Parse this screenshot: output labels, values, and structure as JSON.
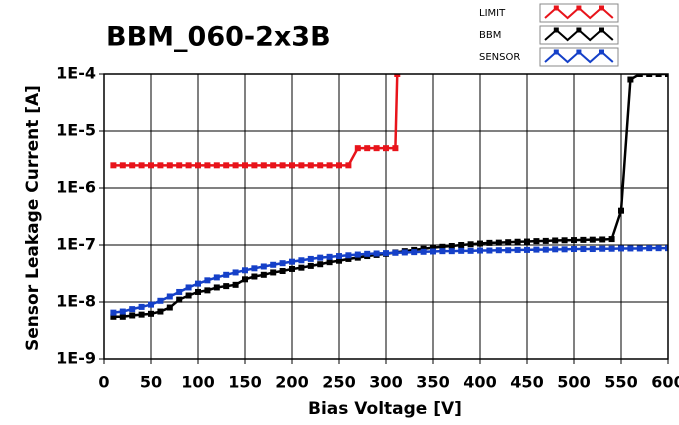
{
  "chart_data": {
    "type": "line",
    "title": "BBM_060-2x3B",
    "x_label": "Bias Voltage [V]",
    "y_label": "Sensor Leakage Current [A]",
    "log_y": true,
    "grid": true,
    "legend": "top-right",
    "xlim": [
      0,
      600
    ],
    "xticks": [
      0,
      50,
      100,
      150,
      200,
      250,
      300,
      350,
      400,
      450,
      500,
      550,
      600
    ],
    "ylim": [
      1e-09,
      0.0001
    ],
    "yticks": [
      {
        "value": 1e-09,
        "label": "1E-9"
      },
      {
        "value": 1e-08,
        "label": "1E-8"
      },
      {
        "value": 1e-07,
        "label": "1E-7"
      },
      {
        "value": 1e-06,
        "label": "1E-6"
      },
      {
        "value": 1e-05,
        "label": "1E-5"
      },
      {
        "value": 0.0001,
        "label": "1E-4"
      }
    ],
    "series": [
      {
        "name": "LIMIT",
        "color": "#e8141b",
        "x": [
          10,
          20,
          30,
          40,
          50,
          60,
          70,
          80,
          90,
          100,
          110,
          120,
          130,
          140,
          150,
          160,
          170,
          180,
          190,
          200,
          210,
          220,
          230,
          240,
          250,
          260,
          270,
          280,
          290,
          300,
          310,
          312
        ],
        "values": [
          2.5e-06,
          2.5e-06,
          2.5e-06,
          2.5e-06,
          2.5e-06,
          2.5e-06,
          2.5e-06,
          2.5e-06,
          2.5e-06,
          2.5e-06,
          2.5e-06,
          2.5e-06,
          2.5e-06,
          2.5e-06,
          2.5e-06,
          2.5e-06,
          2.5e-06,
          2.5e-06,
          2.5e-06,
          2.5e-06,
          2.5e-06,
          2.5e-06,
          2.5e-06,
          2.5e-06,
          2.5e-06,
          2.5e-06,
          5e-06,
          5e-06,
          5e-06,
          5e-06,
          5e-06,
          0.0001
        ]
      },
      {
        "name": "BBM",
        "color": "#000000",
        "x": [
          10,
          20,
          30,
          40,
          50,
          60,
          70,
          80,
          90,
          100,
          110,
          120,
          130,
          140,
          150,
          160,
          170,
          180,
          190,
          200,
          210,
          220,
          230,
          240,
          250,
          260,
          270,
          280,
          290,
          300,
          310,
          320,
          330,
          340,
          350,
          360,
          370,
          380,
          390,
          400,
          410,
          420,
          430,
          440,
          450,
          460,
          470,
          480,
          490,
          500,
          510,
          520,
          530,
          540,
          550,
          560,
          570,
          580,
          590,
          600
        ],
        "values": [
          5.5e-09,
          5.5e-09,
          5.8e-09,
          6e-09,
          6.2e-09,
          6.8e-09,
          8e-09,
          1.1e-08,
          1.3e-08,
          1.5e-08,
          1.6e-08,
          1.8e-08,
          1.9e-08,
          2e-08,
          2.5e-08,
          2.8e-08,
          3e-08,
          3.3e-08,
          3.5e-08,
          3.8e-08,
          4e-08,
          4.3e-08,
          4.6e-08,
          5e-08,
          5.3e-08,
          5.7e-08,
          6e-08,
          6.4e-08,
          6.7e-08,
          7e-08,
          7.4e-08,
          7.8e-08,
          8.2e-08,
          8.6e-08,
          9e-08,
          9.3e-08,
          9.6e-08,
          1e-07,
          1.03e-07,
          1.06e-07,
          1.09e-07,
          1.1e-07,
          1.12e-07,
          1.14e-07,
          1.15e-07,
          1.17e-07,
          1.18e-07,
          1.2e-07,
          1.21e-07,
          1.22e-07,
          1.23e-07,
          1.24e-07,
          1.25e-07,
          1.27e-07,
          4e-07,
          8e-05,
          0.0001,
          0.0001,
          0.0001,
          0.0001
        ]
      },
      {
        "name": "SENSOR",
        "color": "#1540c8",
        "x": [
          10,
          20,
          30,
          40,
          50,
          60,
          70,
          80,
          90,
          100,
          110,
          120,
          130,
          140,
          150,
          160,
          170,
          180,
          190,
          200,
          210,
          220,
          230,
          240,
          250,
          260,
          270,
          280,
          290,
          300,
          310,
          320,
          330,
          340,
          350,
          360,
          370,
          380,
          390,
          400,
          410,
          420,
          430,
          440,
          450,
          460,
          470,
          480,
          490,
          500,
          510,
          520,
          530,
          540,
          550,
          560,
          570,
          580,
          590,
          600
        ],
        "values": [
          6.5e-09,
          6.8e-09,
          7.5e-09,
          8.2e-09,
          9e-09,
          1.05e-08,
          1.25e-08,
          1.5e-08,
          1.8e-08,
          2.1e-08,
          2.4e-08,
          2.7e-08,
          3e-08,
          3.3e-08,
          3.6e-08,
          3.9e-08,
          4.2e-08,
          4.5e-08,
          4.8e-08,
          5.1e-08,
          5.4e-08,
          5.7e-08,
          6e-08,
          6.2e-08,
          6.4e-08,
          6.6e-08,
          6.8e-08,
          7e-08,
          7.1e-08,
          7.2e-08,
          7.3e-08,
          7.4e-08,
          7.5e-08,
          7.6e-08,
          7.7e-08,
          7.8e-08,
          7.8e-08,
          7.9e-08,
          7.9e-08,
          8e-08,
          8e-08,
          8.1e-08,
          8.1e-08,
          8.2e-08,
          8.2e-08,
          8.3e-08,
          8.3e-08,
          8.4e-08,
          8.4e-08,
          8.5e-08,
          8.5e-08,
          8.5e-08,
          8.6e-08,
          8.6e-08,
          8.7e-08,
          8.7e-08,
          8.7e-08,
          8.8e-08,
          8.8e-08,
          8.8e-08
        ]
      }
    ]
  }
}
